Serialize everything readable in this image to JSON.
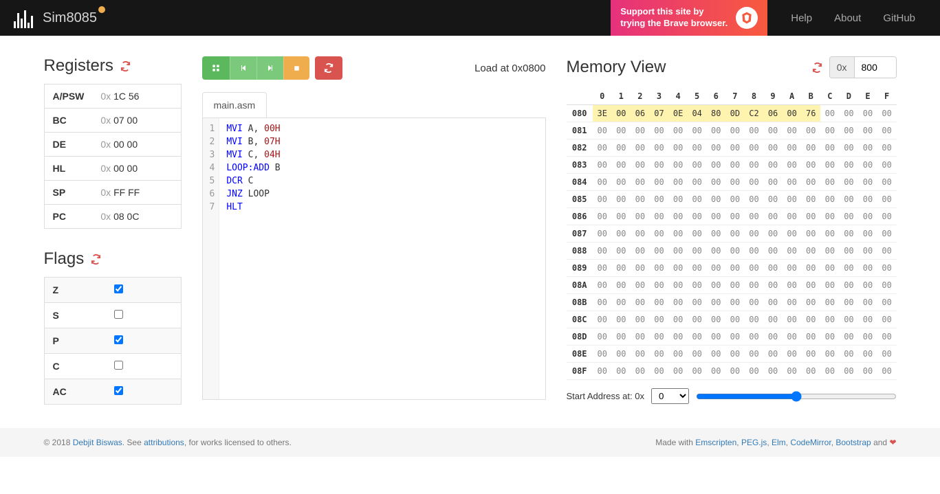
{
  "navbar": {
    "brand": "Sim8085",
    "brave_line1": "Support this site by",
    "brave_line2": "trying the Brave browser.",
    "links": [
      "Help",
      "About",
      "GitHub"
    ]
  },
  "registers": {
    "title": "Registers",
    "rows": [
      {
        "name": "A/PSW",
        "value": "1C 56"
      },
      {
        "name": "BC",
        "value": "07 00"
      },
      {
        "name": "DE",
        "value": "00 00"
      },
      {
        "name": "HL",
        "value": "00 00"
      },
      {
        "name": "SP",
        "value": "FF FF"
      },
      {
        "name": "PC",
        "value": "08 0C"
      }
    ]
  },
  "flags": {
    "title": "Flags",
    "rows": [
      {
        "name": "Z",
        "checked": true
      },
      {
        "name": "S",
        "checked": false
      },
      {
        "name": "P",
        "checked": true
      },
      {
        "name": "C",
        "checked": false
      },
      {
        "name": "AC",
        "checked": true
      }
    ]
  },
  "editor": {
    "load_text": "Load at 0x0800",
    "tab": "main.asm",
    "lines": [
      [
        {
          "t": "MVI",
          "c": "kw"
        },
        {
          "t": " A, ",
          "c": ""
        },
        {
          "t": "00H",
          "c": "num"
        }
      ],
      [
        {
          "t": "MVI",
          "c": "kw"
        },
        {
          "t": " B, ",
          "c": ""
        },
        {
          "t": "07H",
          "c": "num"
        }
      ],
      [
        {
          "t": "MVI",
          "c": "kw"
        },
        {
          "t": " C, ",
          "c": ""
        },
        {
          "t": "04H",
          "c": "num"
        }
      ],
      [
        {
          "t": "LOOP:",
          "c": "lbl"
        },
        {
          "t": "ADD",
          "c": "kw"
        },
        {
          "t": " B",
          "c": ""
        }
      ],
      [
        {
          "t": "DCR",
          "c": "kw"
        },
        {
          "t": " C",
          "c": ""
        }
      ],
      [
        {
          "t": "JNZ",
          "c": "kw"
        },
        {
          "t": " LOOP",
          "c": ""
        }
      ],
      [
        {
          "t": "HLT",
          "c": "kw"
        }
      ]
    ]
  },
  "memory": {
    "title": "Memory View",
    "addr_prefix": "0x",
    "addr_value": "800",
    "cols": [
      "0",
      "1",
      "2",
      "3",
      "4",
      "5",
      "6",
      "7",
      "8",
      "9",
      "A",
      "B",
      "C",
      "D",
      "E",
      "F"
    ],
    "rows": [
      {
        "addr": "080",
        "cells": [
          "3E",
          "00",
          "06",
          "07",
          "0E",
          "04",
          "80",
          "0D",
          "C2",
          "06",
          "00",
          "76",
          "00",
          "00",
          "00",
          "00"
        ],
        "hl_until": 11
      },
      {
        "addr": "081",
        "cells": [
          "00",
          "00",
          "00",
          "00",
          "00",
          "00",
          "00",
          "00",
          "00",
          "00",
          "00",
          "00",
          "00",
          "00",
          "00",
          "00"
        ],
        "hl_until": -1
      },
      {
        "addr": "082",
        "cells": [
          "00",
          "00",
          "00",
          "00",
          "00",
          "00",
          "00",
          "00",
          "00",
          "00",
          "00",
          "00",
          "00",
          "00",
          "00",
          "00"
        ],
        "hl_until": -1
      },
      {
        "addr": "083",
        "cells": [
          "00",
          "00",
          "00",
          "00",
          "00",
          "00",
          "00",
          "00",
          "00",
          "00",
          "00",
          "00",
          "00",
          "00",
          "00",
          "00"
        ],
        "hl_until": -1
      },
      {
        "addr": "084",
        "cells": [
          "00",
          "00",
          "00",
          "00",
          "00",
          "00",
          "00",
          "00",
          "00",
          "00",
          "00",
          "00",
          "00",
          "00",
          "00",
          "00"
        ],
        "hl_until": -1
      },
      {
        "addr": "085",
        "cells": [
          "00",
          "00",
          "00",
          "00",
          "00",
          "00",
          "00",
          "00",
          "00",
          "00",
          "00",
          "00",
          "00",
          "00",
          "00",
          "00"
        ],
        "hl_until": -1
      },
      {
        "addr": "086",
        "cells": [
          "00",
          "00",
          "00",
          "00",
          "00",
          "00",
          "00",
          "00",
          "00",
          "00",
          "00",
          "00",
          "00",
          "00",
          "00",
          "00"
        ],
        "hl_until": -1
      },
      {
        "addr": "087",
        "cells": [
          "00",
          "00",
          "00",
          "00",
          "00",
          "00",
          "00",
          "00",
          "00",
          "00",
          "00",
          "00",
          "00",
          "00",
          "00",
          "00"
        ],
        "hl_until": -1
      },
      {
        "addr": "088",
        "cells": [
          "00",
          "00",
          "00",
          "00",
          "00",
          "00",
          "00",
          "00",
          "00",
          "00",
          "00",
          "00",
          "00",
          "00",
          "00",
          "00"
        ],
        "hl_until": -1
      },
      {
        "addr": "089",
        "cells": [
          "00",
          "00",
          "00",
          "00",
          "00",
          "00",
          "00",
          "00",
          "00",
          "00",
          "00",
          "00",
          "00",
          "00",
          "00",
          "00"
        ],
        "hl_until": -1
      },
      {
        "addr": "08A",
        "cells": [
          "00",
          "00",
          "00",
          "00",
          "00",
          "00",
          "00",
          "00",
          "00",
          "00",
          "00",
          "00",
          "00",
          "00",
          "00",
          "00"
        ],
        "hl_until": -1
      },
      {
        "addr": "08B",
        "cells": [
          "00",
          "00",
          "00",
          "00",
          "00",
          "00",
          "00",
          "00",
          "00",
          "00",
          "00",
          "00",
          "00",
          "00",
          "00",
          "00"
        ],
        "hl_until": -1
      },
      {
        "addr": "08C",
        "cells": [
          "00",
          "00",
          "00",
          "00",
          "00",
          "00",
          "00",
          "00",
          "00",
          "00",
          "00",
          "00",
          "00",
          "00",
          "00",
          "00"
        ],
        "hl_until": -1
      },
      {
        "addr": "08D",
        "cells": [
          "00",
          "00",
          "00",
          "00",
          "00",
          "00",
          "00",
          "00",
          "00",
          "00",
          "00",
          "00",
          "00",
          "00",
          "00",
          "00"
        ],
        "hl_until": -1
      },
      {
        "addr": "08E",
        "cells": [
          "00",
          "00",
          "00",
          "00",
          "00",
          "00",
          "00",
          "00",
          "00",
          "00",
          "00",
          "00",
          "00",
          "00",
          "00",
          "00"
        ],
        "hl_until": -1
      },
      {
        "addr": "08F",
        "cells": [
          "00",
          "00",
          "00",
          "00",
          "00",
          "00",
          "00",
          "00",
          "00",
          "00",
          "00",
          "00",
          "00",
          "00",
          "00",
          "00"
        ],
        "hl_until": -1
      }
    ],
    "start_label": "Start Address at: 0x",
    "start_value": "0"
  },
  "footer": {
    "copyright_prefix": "© 2018 ",
    "author": "Debjit Biswas",
    "mid": ". See ",
    "attributions": "attributions",
    "suffix": ", for works licensed to others.",
    "made_with": "Made with ",
    "libs": [
      "Emscripten",
      "PEG.js",
      "Elm",
      "CodeMirror",
      "Bootstrap"
    ],
    "and": " and "
  }
}
